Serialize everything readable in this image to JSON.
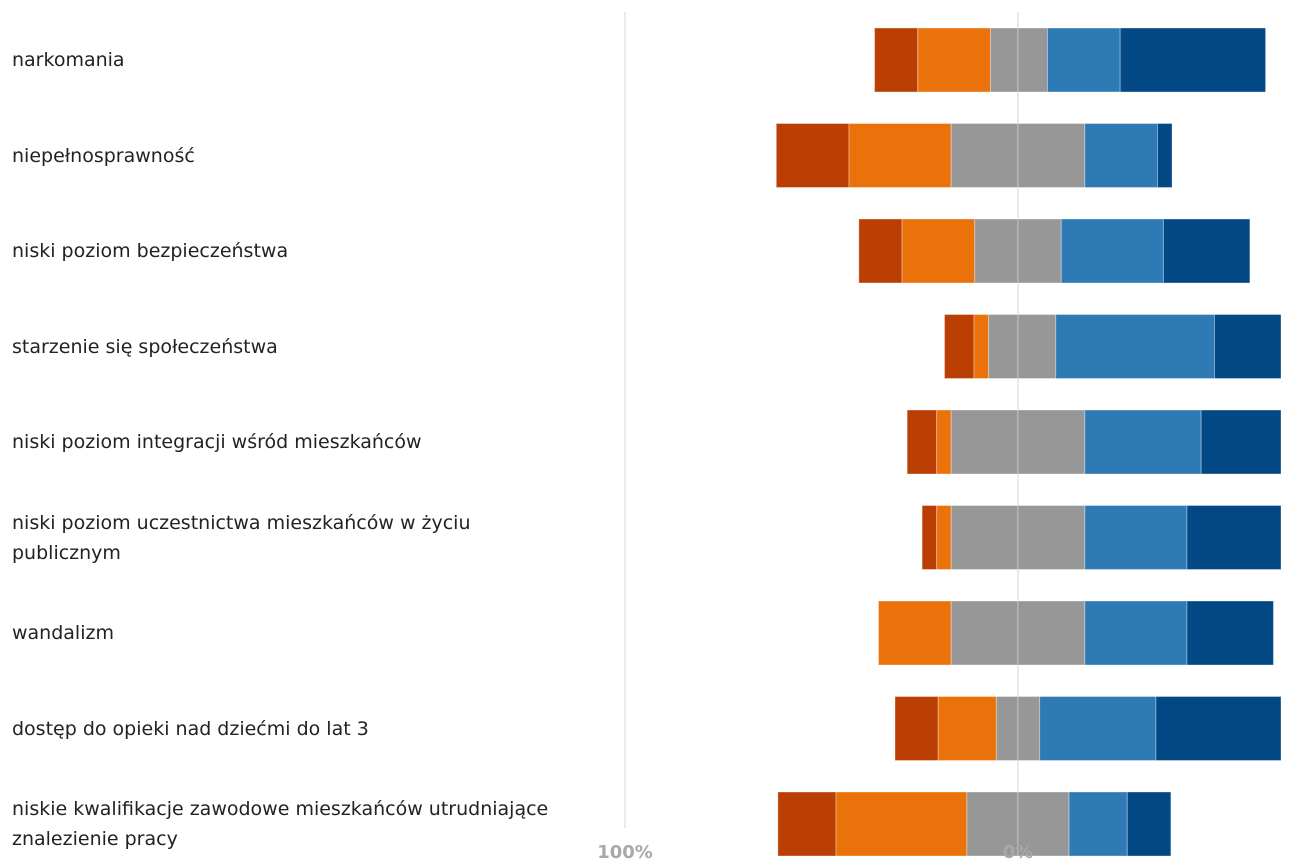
{
  "chart_data": {
    "type": "bar",
    "orientation": "horizontal",
    "stacked": "diverging",
    "categories": [
      "narkomania",
      "niepełnosprawność",
      "niski poziom bezpieczeństwa",
      "starzenie się społeczeństwa",
      "niski poziom integracji wśród mieszkańców",
      "niski poziom uczestnictwa mieszkańców w życiu publicznym",
      "wandalizm",
      "dostęp do opieki nad dziećmi do lat 3",
      "niskie kwalifikacje zawodowe mieszkańców utrudniające znalezienie pracy"
    ],
    "segments_left_to_right": [
      [
        11,
        18.5,
        7,
        7.5,
        18.5,
        37
      ],
      [
        18.5,
        26,
        17,
        17,
        18.5,
        3.7
      ],
      [
        11,
        18.5,
        11,
        11,
        26,
        22
      ],
      [
        7.5,
        3.7,
        7.5,
        9.6,
        40.4,
        25
      ],
      [
        7.5,
        3.7,
        17,
        17,
        29.6,
        25
      ],
      [
        3.7,
        3.7,
        17,
        17,
        26,
        25
      ],
      [
        0,
        18.5,
        17,
        17,
        26,
        22
      ],
      [
        11,
        14.8,
        5.5,
        5.5,
        29.6,
        33.6
      ],
      [
        14.8,
        33.3,
        13,
        13,
        14.8,
        11.1
      ]
    ],
    "segment_colors": [
      "#bb3e03",
      "#eb720a",
      "#979797",
      "#979797",
      "#2d7ab4",
      "#024884"
    ],
    "ticks": [
      "100%",
      "0%"
    ],
    "xlim": [
      -100,
      67
    ],
    "grid": true
  }
}
